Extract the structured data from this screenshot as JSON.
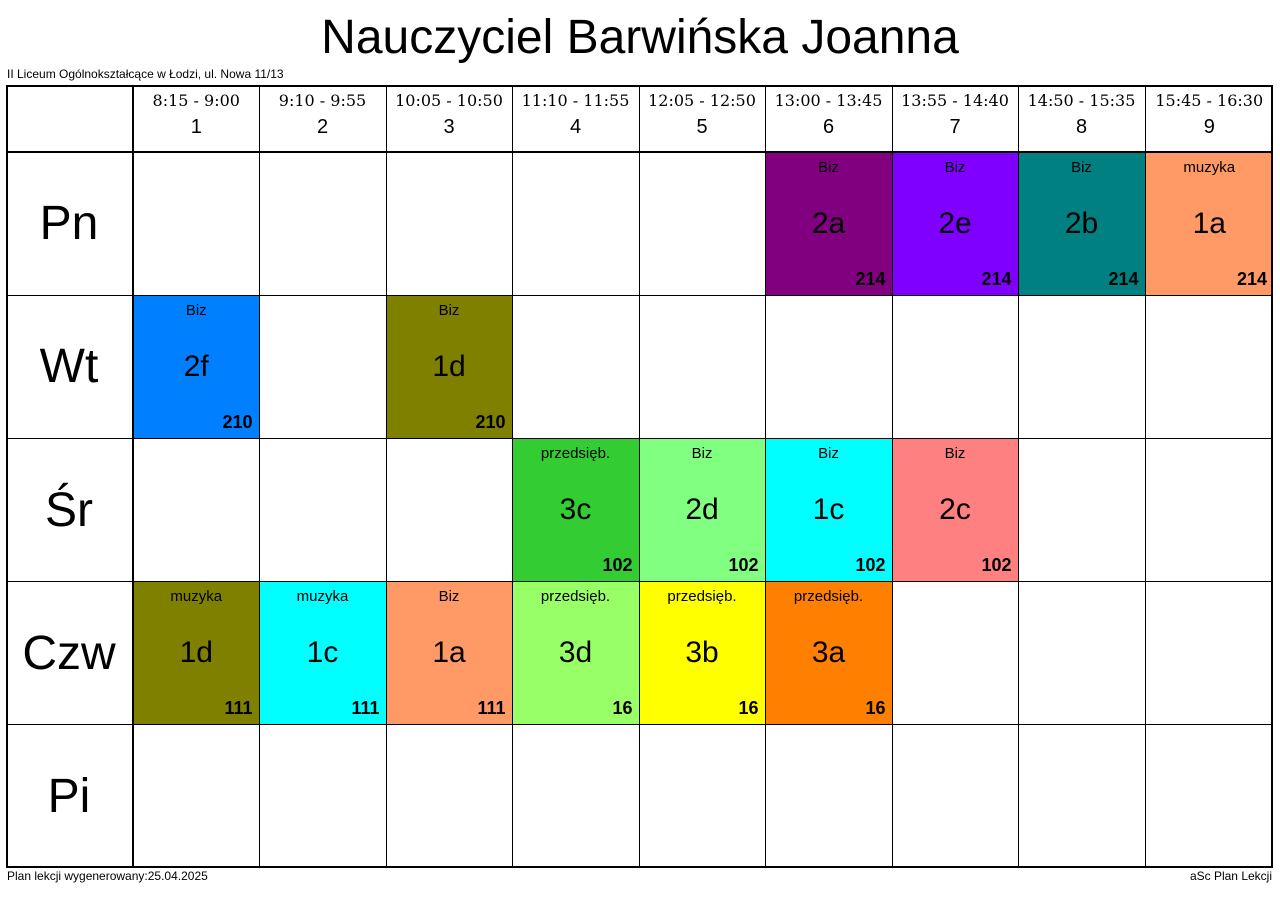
{
  "title": "Nauczyciel Barwińska Joanna",
  "school": "II Liceum Ogólnokształcące w Łodzi, ul. Nowa 11/13",
  "footer_left": "Plan lekcji wygenerowany:25.04.2025",
  "footer_right": "aSc Plan Lekcji",
  "periods": [
    {
      "time": "8:15 - 9:00",
      "num": "1"
    },
    {
      "time": "9:10 - 9:55",
      "num": "2"
    },
    {
      "time": "10:05 - 10:50",
      "num": "3"
    },
    {
      "time": "11:10 - 11:55",
      "num": "4"
    },
    {
      "time": "12:05 - 12:50",
      "num": "5"
    },
    {
      "time": "13:00 - 13:45",
      "num": "6"
    },
    {
      "time": "13:55 - 14:40",
      "num": "7"
    },
    {
      "time": "14:50 - 15:35",
      "num": "8"
    },
    {
      "time": "15:45 - 16:30",
      "num": "9"
    }
  ],
  "days": [
    {
      "name": "Pn",
      "lessons": [
        null,
        null,
        null,
        null,
        null,
        {
          "subject": "Biz",
          "class": "2a",
          "room": "214",
          "color": "#800080"
        },
        {
          "subject": "Biz",
          "class": "2e",
          "room": "214",
          "color": "#8000ff"
        },
        {
          "subject": "Biz",
          "class": "2b",
          "room": "214",
          "color": "#008080"
        },
        {
          "subject": "muzyka",
          "class": "1a",
          "room": "214",
          "color": "#ff9966"
        }
      ]
    },
    {
      "name": "Wt",
      "lessons": [
        {
          "subject": "Biz",
          "class": "2f",
          "room": "210",
          "color": "#0080ff"
        },
        null,
        {
          "subject": "Biz",
          "class": "1d",
          "room": "210",
          "color": "#808000"
        },
        null,
        null,
        null,
        null,
        null,
        null
      ]
    },
    {
      "name": "Śr",
      "lessons": [
        null,
        null,
        null,
        {
          "subject": "przedsięb.",
          "class": "3c",
          "room": "102",
          "color": "#33cc33"
        },
        {
          "subject": "Biz",
          "class": "2d",
          "room": "102",
          "color": "#80ff80"
        },
        {
          "subject": "Biz",
          "class": "1c",
          "room": "102",
          "color": "#00ffff"
        },
        {
          "subject": "Biz",
          "class": "2c",
          "room": "102",
          "color": "#ff8080"
        },
        null,
        null
      ]
    },
    {
      "name": "Czw",
      "lessons": [
        {
          "subject": "muzyka",
          "class": "1d",
          "room": "111",
          "color": "#808000"
        },
        {
          "subject": "muzyka",
          "class": "1c",
          "room": "111",
          "color": "#00ffff"
        },
        {
          "subject": "Biz",
          "class": "1a",
          "room": "111",
          "color": "#ff9966"
        },
        {
          "subject": "przedsięb.",
          "class": "3d",
          "room": "16",
          "color": "#99ff66"
        },
        {
          "subject": "przedsięb.",
          "class": "3b",
          "room": "16",
          "color": "#ffff00"
        },
        {
          "subject": "przedsięb.",
          "class": "3a",
          "room": "16",
          "color": "#ff8000"
        },
        null,
        null,
        null
      ]
    },
    {
      "name": "Pi",
      "lessons": [
        null,
        null,
        null,
        null,
        null,
        null,
        null,
        null,
        null
      ]
    }
  ]
}
